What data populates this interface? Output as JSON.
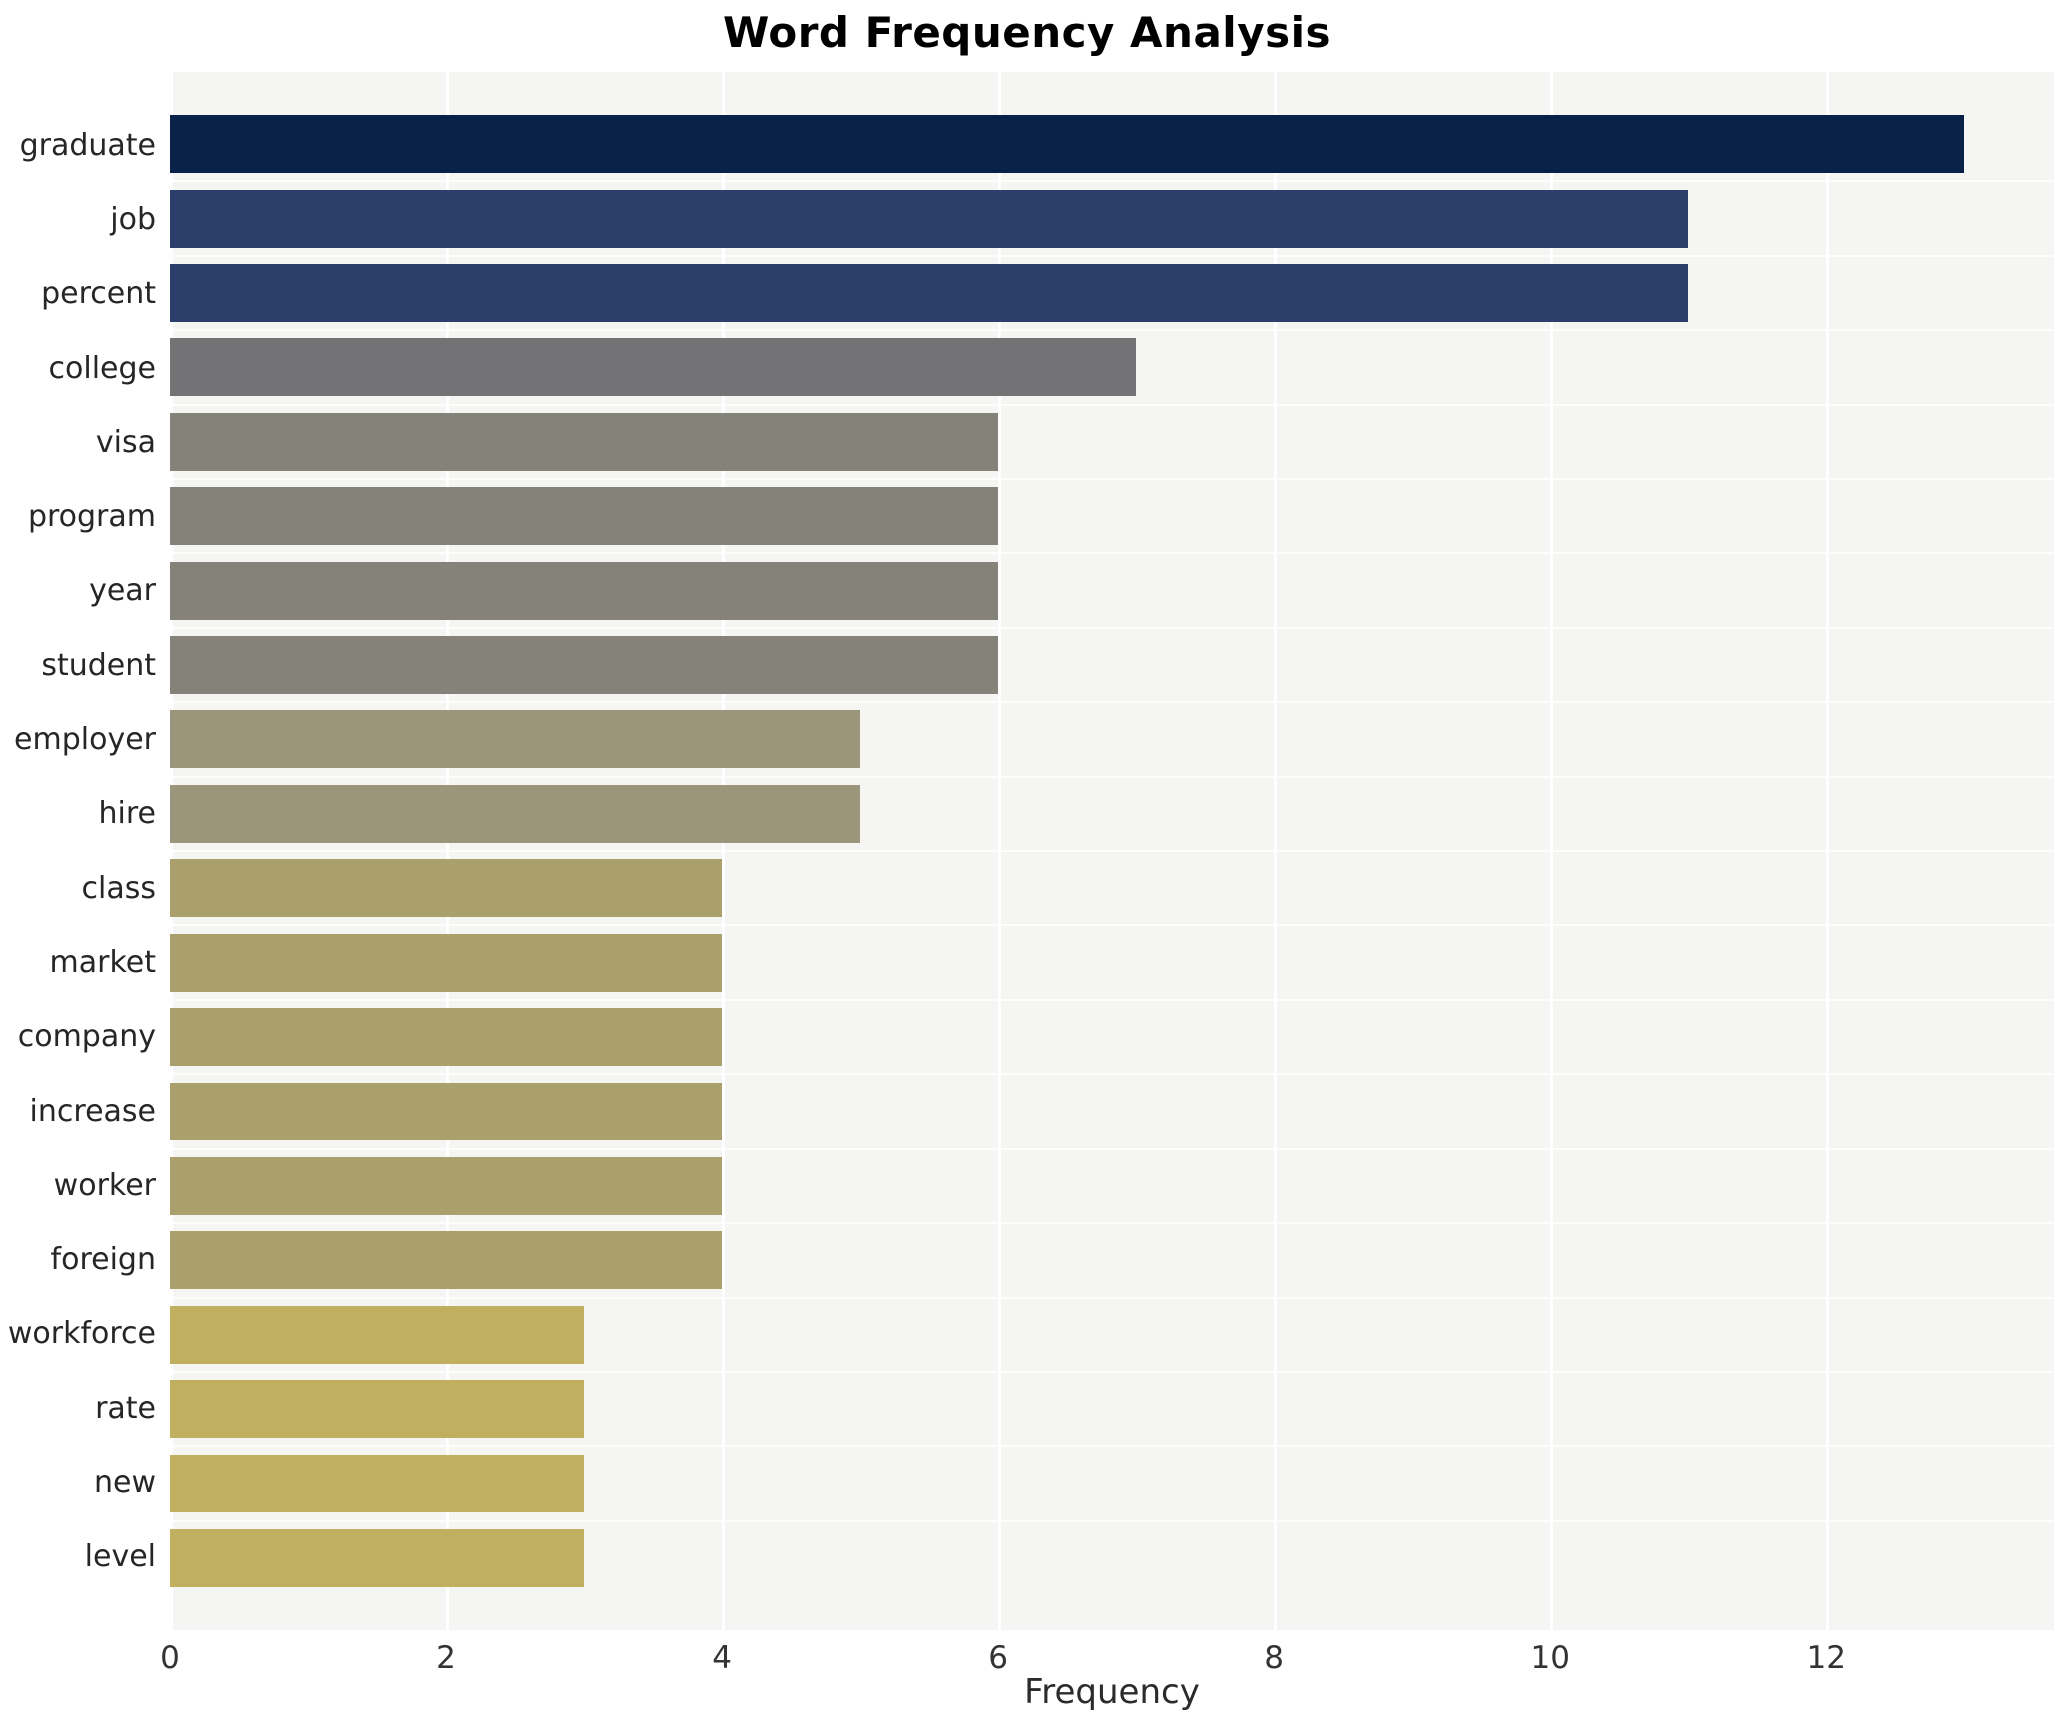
{
  "title": "Word Frequency Analysis",
  "x_axis": {
    "label": "Frequency"
  },
  "chart_data": {
    "type": "bar",
    "orientation": "horizontal",
    "title": "Word Frequency Analysis",
    "xlabel": "Frequency",
    "ylabel": "",
    "categories": [
      "graduate",
      "job",
      "percent",
      "college",
      "visa",
      "program",
      "year",
      "student",
      "employer",
      "hire",
      "class",
      "market",
      "company",
      "increase",
      "worker",
      "foreign",
      "workforce",
      "rate",
      "new",
      "level"
    ],
    "values": [
      13,
      11,
      11,
      7,
      6,
      6,
      6,
      6,
      5,
      5,
      4,
      4,
      4,
      4,
      4,
      4,
      3,
      3,
      3,
      3
    ],
    "bar_colors": [
      "#0a2148",
      "#2c3f6b",
      "#2c3f6b",
      "#737376",
      "#85827a",
      "#85827a",
      "#85827a",
      "#85827a",
      "#9b957c",
      "#9b957c",
      "#a9a06e",
      "#a9a06e",
      "#a9a06e",
      "#a9a06e",
      "#a9a06e",
      "#a9a06e",
      "#c1af60",
      "#c1af60",
      "#c1af60",
      "#c1af60"
    ],
    "xlim": [
      0,
      13.65
    ],
    "xticks": [
      0,
      2,
      4,
      6,
      8,
      10,
      12
    ],
    "grid": true,
    "legend_position": "none",
    "plot_bg": "#f5f5f3",
    "grid_color": "#ffffff"
  }
}
